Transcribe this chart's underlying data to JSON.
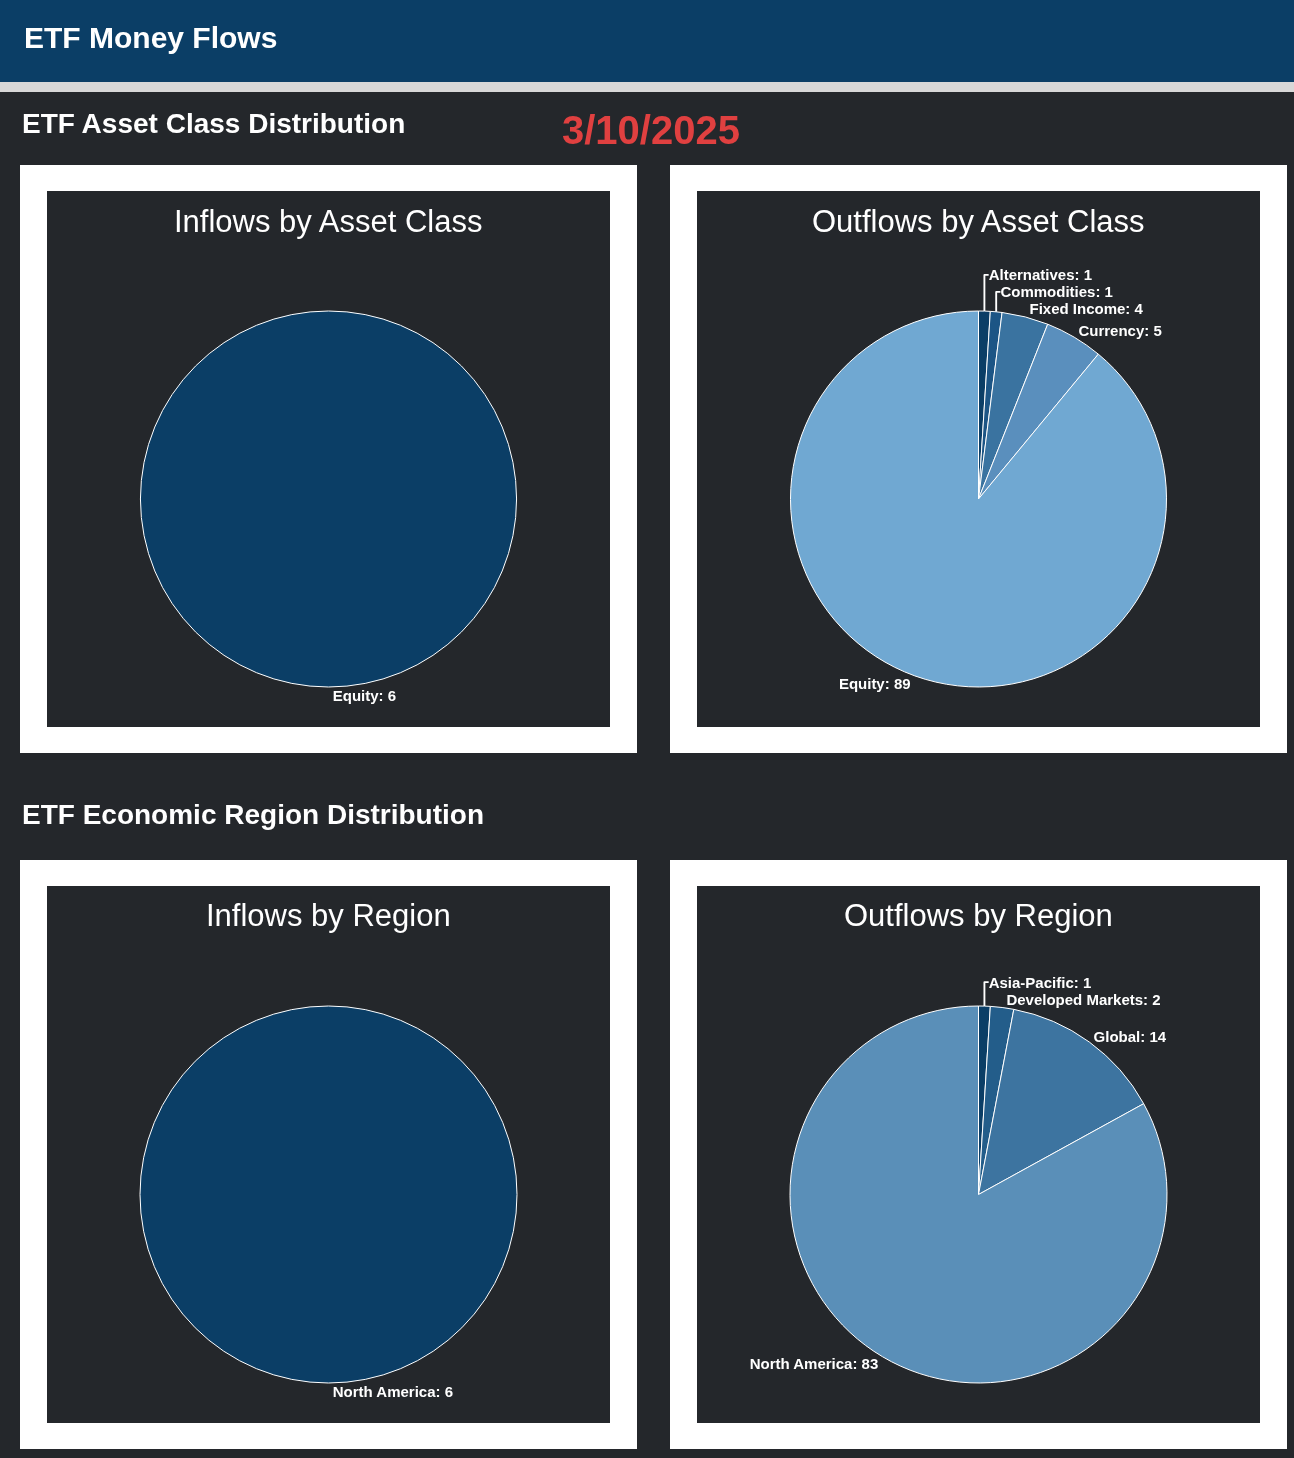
{
  "chart_data": [
    {
      "type": "pie",
      "title": "Inflows by Asset Class",
      "annotations": [
        "ETF Money Flows",
        "ETF Asset Class Distribution",
        "3/10/2025"
      ],
      "categories": [
        "Equity"
      ],
      "values": [
        6
      ],
      "colors": [
        "#0b3e66"
      ],
      "value_labels": [
        "6"
      ],
      "legend": false
    },
    {
      "type": "pie",
      "title": "Outflows by Asset Class",
      "categories": [
        "Alternatives",
        "Commodities",
        "Fixed Income",
        "Currency",
        "Equity"
      ],
      "values": [
        1,
        1,
        4,
        5,
        89
      ],
      "colors": [
        "#0b3e66",
        "#1c5585",
        "#3a73a0",
        "#5a8fbd",
        "#70a8d2"
      ],
      "value_labels": [
        "1",
        "1",
        "4",
        "5",
        "89"
      ],
      "legend": false
    },
    {
      "type": "pie",
      "title": "Inflows by Region",
      "annotations": [
        "ETF Economic Region Distribution"
      ],
      "categories": [
        "North America"
      ],
      "values": [
        6
      ],
      "colors": [
        "#0b3e66"
      ],
      "value_labels": [
        "6"
      ],
      "legend": false
    },
    {
      "type": "pie",
      "title": "Outflows by Region",
      "categories": [
        "Asia-Pacific",
        "Developed Markets",
        "Global",
        "North America"
      ],
      "values": [
        1,
        2,
        14,
        83
      ],
      "colors": [
        "#0b3e66",
        "#235d8a",
        "#3d74a0",
        "#5a8fb8"
      ],
      "value_labels": [
        "1",
        "2",
        "14",
        "83"
      ],
      "legend": false
    }
  ]
}
